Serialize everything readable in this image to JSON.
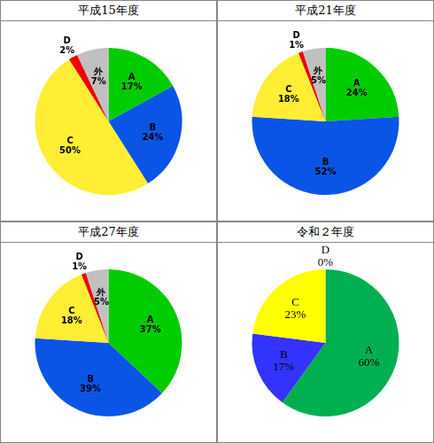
{
  "chart_data": [
    {
      "type": "pie",
      "title": "平成15年度",
      "categories": [
        "A",
        "B",
        "C",
        "D",
        "外"
      ],
      "values": [
        17,
        24,
        50,
        2,
        7
      ],
      "value_labels": [
        "17%",
        "24%",
        "50%",
        "2%",
        "7%"
      ],
      "colors": [
        "#00cc00",
        "#0a55e6",
        "#ffee33",
        "#ee0000",
        "#c0c0c0"
      ],
      "data_labels": true
    },
    {
      "type": "pie",
      "title": "平成21年度",
      "categories": [
        "A",
        "B",
        "C",
        "D",
        "外"
      ],
      "values": [
        24,
        52,
        18,
        1,
        5
      ],
      "value_labels": [
        "24%",
        "52%",
        "18%",
        "1%",
        "5%"
      ],
      "colors": [
        "#00cc00",
        "#0a55e6",
        "#ffee33",
        "#ee0000",
        "#c0c0c0"
      ],
      "data_labels": true
    },
    {
      "type": "pie",
      "title": "平成27年度",
      "categories": [
        "A",
        "B",
        "C",
        "D",
        "外"
      ],
      "values": [
        37,
        39,
        18,
        1,
        5
      ],
      "value_labels": [
        "37%",
        "39%",
        "18%",
        "1%",
        "5%"
      ],
      "colors": [
        "#00cc00",
        "#0a55e6",
        "#ffee33",
        "#ee0000",
        "#c0c0c0"
      ],
      "data_labels": true
    },
    {
      "type": "pie",
      "title": "令和２年度",
      "categories": [
        "A",
        "B",
        "C",
        "D"
      ],
      "values": [
        60,
        17,
        23,
        0
      ],
      "value_labels": [
        "60%",
        "17%",
        "23%",
        "0%"
      ],
      "colors": [
        "#00b050",
        "#3333ff",
        "#ffff00",
        "#ee0000"
      ],
      "data_labels": true
    }
  ]
}
